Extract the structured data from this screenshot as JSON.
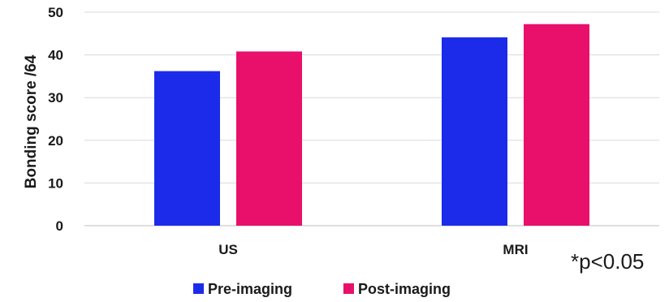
{
  "chart_data": {
    "type": "bar",
    "categories": [
      "US",
      "MRI"
    ],
    "series": [
      {
        "name": "Pre-imaging",
        "values": [
          36.2,
          44.1
        ],
        "color": "#1c2bea"
      },
      {
        "name": "Post-imaging",
        "values": [
          40.8,
          47.2
        ],
        "color": "#e8106a"
      }
    ],
    "ylabel": "Bonding score /64",
    "xlabel": "",
    "ylim": [
      0,
      50
    ],
    "yticks": [
      0,
      10,
      20,
      30,
      40,
      50
    ],
    "grid": true,
    "legend": "bottom",
    "annotation": "*p<0.05"
  }
}
